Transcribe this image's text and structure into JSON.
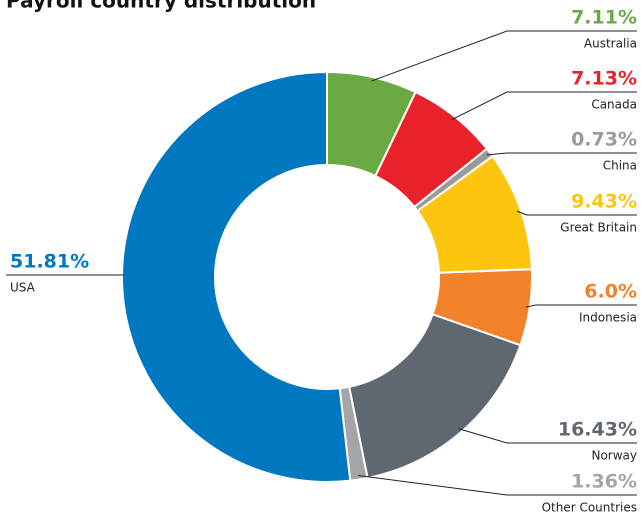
{
  "chart_data": {
    "type": "donut",
    "title": "Payroll country distribution",
    "categories": [
      "Australia",
      "Canada",
      "China",
      "Great Britain",
      "Indonesia",
      "Norway",
      "Other Countries",
      "USA"
    ],
    "values": [
      7.11,
      7.13,
      0.73,
      9.43,
      6.0,
      16.43,
      1.36,
      51.81
    ],
    "value_labels": [
      "7.11%",
      "7.13%",
      "0.73%",
      "9.43%",
      "6.0%",
      "16.43%",
      "1.36%",
      "51.81%"
    ],
    "colors": [
      "#6aaa45",
      "#e8212a",
      "#9a9a9a",
      "#fec50e",
      "#f2822a",
      "#5f6870",
      "#a5a5a7",
      "#0078c1"
    ]
  }
}
